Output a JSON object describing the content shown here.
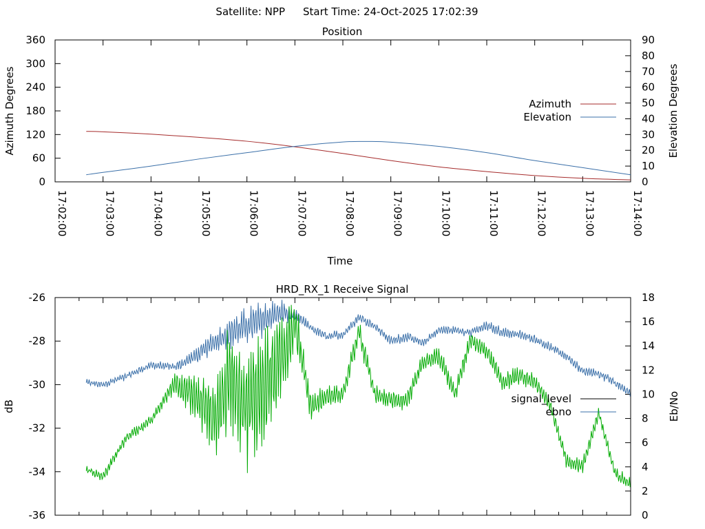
{
  "header": {
    "satellite_text": "Satellite: NPP",
    "start_time_text": "Start Time: 24-Oct-2025 17:02:39"
  },
  "chart_data": [
    {
      "type": "line",
      "title": "Position",
      "xlabel": "Time",
      "ylabel": "Azimuth Degrees",
      "y2label": "Elevation Degrees",
      "x_ticks": [
        "17:02:00",
        "17:03:00",
        "17:04:00",
        "17:05:00",
        "17:06:00",
        "17:07:00",
        "17:08:00",
        "17:09:00",
        "17:10:00",
        "17:11:00",
        "17:12:00",
        "17:13:00",
        "17:14:00"
      ],
      "xlim": [
        "17:02:00",
        "17:14:00"
      ],
      "ylim": [
        0,
        360
      ],
      "y_ticks": [
        "0",
        "60",
        "120",
        "180",
        "240",
        "300",
        "360"
      ],
      "y2lim": [
        0,
        90
      ],
      "y2_ticks": [
        "0",
        "10",
        "20",
        "30",
        "40",
        "50",
        "60",
        "70",
        "80",
        "90"
      ],
      "legend_position": "right",
      "series": [
        {
          "name": "Azimuth",
          "axis": "left",
          "color": "#a52a2a",
          "x": [
            "17:02:39",
            "17:03:00",
            "17:04:00",
            "17:05:00",
            "17:06:00",
            "17:07:00",
            "17:08:00",
            "17:09:00",
            "17:10:00",
            "17:11:00",
            "17:12:00",
            "17:13:00",
            "17:14:00"
          ],
          "y": [
            128,
            127,
            121,
            113,
            103,
            89,
            72,
            54,
            38,
            26,
            16,
            9,
            5
          ]
        },
        {
          "name": "Elevation",
          "axis": "right",
          "color": "#3a6fa8",
          "x": [
            "17:02:39",
            "17:03:00",
            "17:04:00",
            "17:05:00",
            "17:06:00",
            "17:07:00",
            "17:08:00",
            "17:08:30",
            "17:09:00",
            "17:10:00",
            "17:11:00",
            "17:12:00",
            "17:13:00",
            "17:14:00"
          ],
          "y": [
            4.5,
            6,
            10,
            14.5,
            18.5,
            22.5,
            25.3,
            25.6,
            25.2,
            22.5,
            18.5,
            13.5,
            9,
            4.5
          ]
        }
      ]
    },
    {
      "type": "line",
      "title": "HRD_RX_1 Receive Signal",
      "xlabel": "",
      "ylabel": "dB",
      "y2label": "Eb/No",
      "xlim": [
        "17:02:00",
        "17:14:00"
      ],
      "ylim": [
        -36,
        -26
      ],
      "y_ticks": [
        "-26",
        "-28",
        "-30",
        "-32",
        "-34",
        "-36"
      ],
      "y2lim": [
        0,
        18
      ],
      "y2_ticks": [
        "0",
        "2",
        "4",
        "6",
        "8",
        "10",
        "12",
        "14",
        "16",
        "18"
      ],
      "legend_position": "right",
      "series": [
        {
          "name": "signal_level",
          "axis": "left",
          "color": "#000000",
          "x": [],
          "y": []
        },
        {
          "name": "ebno",
          "axis": "right",
          "color": "#00aa00",
          "trace_color": "#00aa00",
          "legend_color": "#3a6fa8",
          "x": [
            "17:02:39",
            "17:03:00",
            "17:03:30",
            "17:04:00",
            "17:04:30",
            "17:05:00",
            "17:05:20",
            "17:05:40",
            "17:06:00",
            "17:06:20",
            "17:06:40",
            "17:07:00",
            "17:07:20",
            "17:07:40",
            "17:08:00",
            "17:08:20",
            "17:08:40",
            "17:09:00",
            "17:09:20",
            "17:09:40",
            "17:10:00",
            "17:10:20",
            "17:10:40",
            "17:11:00",
            "17:11:20",
            "17:11:40",
            "17:12:00",
            "17:12:20",
            "17:12:40",
            "17:13:00",
            "17:13:20",
            "17:13:40",
            "17:14:00"
          ],
          "y": [
            3.8,
            3.2,
            6.5,
            7.8,
            11.0,
            9.5,
            8.0,
            11.5,
            9.0,
            10.5,
            12.5,
            16.0,
            9.0,
            9.8,
            10.0,
            15.2,
            10.0,
            9.5,
            9.5,
            12.5,
            13.2,
            10.0,
            14.5,
            13.5,
            11.0,
            11.5,
            11.0,
            9.0,
            4.5,
            4.0,
            8.5,
            3.5,
            2.5
          ],
          "amplitude": [
            0.3,
            0.4,
            0.4,
            0.5,
            0.9,
            2.2,
            3.6,
            4.5,
            5.0,
            5.0,
            4.0,
            2.5,
            1.2,
            0.8,
            0.8,
            0.9,
            0.8,
            0.8,
            0.8,
            0.8,
            0.8,
            0.8,
            0.8,
            0.8,
            0.8,
            0.8,
            0.7,
            0.7,
            0.6,
            0.6,
            0.6,
            0.5,
            0.5
          ]
        },
        {
          "name": "",
          "axis": "left",
          "color": "#3a6fa8",
          "x": [
            "17:02:39",
            "17:03:00",
            "17:03:30",
            "17:04:00",
            "17:04:30",
            "17:05:00",
            "17:05:20",
            "17:05:40",
            "17:06:00",
            "17:06:20",
            "17:06:40",
            "17:07:00",
            "17:07:20",
            "17:07:40",
            "17:08:00",
            "17:08:20",
            "17:08:40",
            "17:09:00",
            "17:09:20",
            "17:09:40",
            "17:10:00",
            "17:10:20",
            "17:10:40",
            "17:11:00",
            "17:11:20",
            "17:11:40",
            "17:12:00",
            "17:12:20",
            "17:12:40",
            "17:13:00",
            "17:13:20",
            "17:13:40",
            "17:14:00"
          ],
          "y": [
            -29.9,
            -30.0,
            -29.6,
            -29.1,
            -29.2,
            -28.6,
            -28.0,
            -27.6,
            -27.3,
            -27.0,
            -26.7,
            -26.8,
            -27.4,
            -27.8,
            -27.7,
            -26.9,
            -27.3,
            -28.0,
            -27.8,
            -28.1,
            -27.5,
            -27.5,
            -27.6,
            -27.3,
            -27.6,
            -27.7,
            -27.9,
            -28.3,
            -28.7,
            -29.4,
            -29.5,
            -29.9,
            -30.4
          ],
          "amplitude": [
            0.12,
            0.15,
            0.15,
            0.15,
            0.2,
            0.35,
            0.55,
            0.7,
            0.8,
            0.8,
            0.65,
            0.3,
            0.2,
            0.2,
            0.2,
            0.2,
            0.2,
            0.2,
            0.2,
            0.2,
            0.2,
            0.2,
            0.2,
            0.2,
            0.2,
            0.2,
            0.2,
            0.2,
            0.2,
            0.2,
            0.2,
            0.2,
            0.2
          ]
        }
      ]
    }
  ]
}
